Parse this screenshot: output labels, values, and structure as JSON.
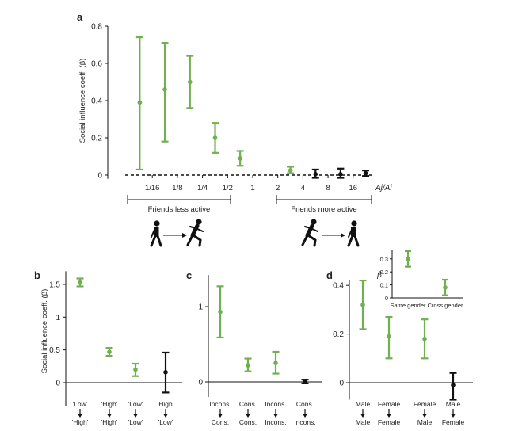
{
  "colors": {
    "green": "#6fb04f",
    "black": "#111111"
  },
  "panel_labels": {
    "a": "a",
    "b": "b",
    "c": "c",
    "d": "d"
  },
  "annotations": {
    "less_active": "Friends less active",
    "more_active": "Friends more active"
  },
  "icons": {
    "less_active_pair": "walker-to-runner-icon",
    "more_active_pair": "runner-to-walker-icon"
  },
  "chart_data": [
    {
      "id": "a",
      "type": "scatter",
      "subtype": "errorbar",
      "ylabel": "Social influence coeff. (β)",
      "xlabel": "Aj/Ai",
      "x_scale": "log2",
      "ylim": [
        -0.02,
        0.8
      ],
      "yticks": [
        0,
        0.2,
        0.4,
        0.6,
        0.8
      ],
      "ytick_labels": [
        "0",
        "0.2",
        "0.4",
        "0.6",
        "0.8"
      ],
      "xticks": [
        0.0625,
        0.125,
        0.25,
        0.5,
        1,
        2,
        4,
        8,
        16
      ],
      "xtick_labels": [
        "1/16",
        "1/8",
        "1/4",
        "1/2",
        "1",
        "2",
        "4",
        "8",
        "16"
      ],
      "points": [
        {
          "x": 0.0442,
          "y": 0.39,
          "lo": 0.03,
          "hi": 0.74,
          "color": "green"
        },
        {
          "x": 0.0884,
          "y": 0.46,
          "lo": 0.18,
          "hi": 0.71,
          "color": "green"
        },
        {
          "x": 0.177,
          "y": 0.5,
          "lo": 0.36,
          "hi": 0.64,
          "color": "green"
        },
        {
          "x": 0.354,
          "y": 0.2,
          "lo": 0.12,
          "hi": 0.28,
          "color": "green"
        },
        {
          "x": 0.707,
          "y": 0.09,
          "lo": 0.05,
          "hi": 0.13,
          "color": "green"
        },
        {
          "x": 2.83,
          "y": 0.025,
          "lo": 0.01,
          "hi": 0.045,
          "color": "green"
        },
        {
          "x": 5.66,
          "y": 0.005,
          "lo": -0.015,
          "hi": 0.03,
          "color": "black"
        },
        {
          "x": 11.3,
          "y": 0.005,
          "lo": -0.015,
          "hi": 0.035,
          "color": "black"
        },
        {
          "x": 22.6,
          "y": 0.01,
          "lo": -0.005,
          "hi": 0.025,
          "color": "black"
        }
      ]
    },
    {
      "id": "b",
      "type": "scatter",
      "subtype": "errorbar",
      "ylabel": "Social influence coeff. (β)",
      "ylim": [
        -0.35,
        1.7
      ],
      "yticks": [
        0,
        0.5,
        1,
        1.5
      ],
      "ytick_labels": [
        "0",
        "0.5",
        "1",
        "1.5"
      ],
      "categories": [
        {
          "top": "'Low'",
          "bottom": "'High'"
        },
        {
          "top": "'High'",
          "bottom": "'High'"
        },
        {
          "top": "'Low'",
          "bottom": "'Low'"
        },
        {
          "top": "'High'",
          "bottom": "'Low'"
        }
      ],
      "points": [
        {
          "y": 1.53,
          "lo": 1.47,
          "hi": 1.59,
          "color": "green"
        },
        {
          "y": 0.47,
          "lo": 0.41,
          "hi": 0.53,
          "color": "green"
        },
        {
          "y": 0.2,
          "lo": 0.1,
          "hi": 0.29,
          "color": "green"
        },
        {
          "y": 0.16,
          "lo": -0.15,
          "hi": 0.46,
          "color": "black"
        }
      ]
    },
    {
      "id": "c",
      "type": "scatter",
      "subtype": "errorbar",
      "ylim": [
        -0.2,
        1.42
      ],
      "yticks": [
        0,
        1
      ],
      "ytick_labels": [
        "0",
        "1"
      ],
      "categories": [
        {
          "top": "Incons.",
          "bottom": "Cons."
        },
        {
          "top": "Cons.",
          "bottom": "Cons."
        },
        {
          "top": "Incons.",
          "bottom": "Incons."
        },
        {
          "top": "Cons.",
          "bottom": "Incons."
        }
      ],
      "points": [
        {
          "y": 0.93,
          "lo": 0.59,
          "hi": 1.27,
          "color": "green"
        },
        {
          "y": 0.22,
          "lo": 0.14,
          "hi": 0.31,
          "color": "green"
        },
        {
          "y": 0.25,
          "lo": 0.11,
          "hi": 0.4,
          "color": "green"
        },
        {
          "y": 0.01,
          "lo": -0.02,
          "hi": 0.03,
          "color": "black"
        }
      ]
    },
    {
      "id": "d",
      "type": "scatter",
      "subtype": "errorbar",
      "ylim": [
        -0.07,
        0.42
      ],
      "yticks": [
        0,
        0.2,
        0.4
      ],
      "ytick_labels": [
        "0",
        "0.2",
        "0.4"
      ],
      "categories": [
        {
          "top": "Male",
          "bottom": "Male"
        },
        {
          "top": "Female",
          "bottom": "Female"
        },
        {
          "top": "Female",
          "bottom": "Male"
        },
        {
          "top": "Male",
          "bottom": "Female"
        }
      ],
      "points": [
        {
          "y": 0.32,
          "lo": 0.22,
          "hi": 0.42,
          "color": "green"
        },
        {
          "y": 0.19,
          "lo": 0.1,
          "hi": 0.27,
          "color": "green"
        },
        {
          "y": 0.18,
          "lo": 0.1,
          "hi": 0.26,
          "color": "green"
        },
        {
          "y": -0.01,
          "lo": -0.07,
          "hi": 0.04,
          "color": "black"
        }
      ]
    },
    {
      "id": "d_inset",
      "type": "scatter",
      "subtype": "errorbar",
      "ylabel": "β",
      "ylim": [
        0,
        0.37
      ],
      "yticks": [
        0,
        0.1,
        0.2,
        0.3
      ],
      "ytick_labels": [
        "0",
        "0.1",
        "0.2",
        "0.3"
      ],
      "categories": [
        "Same gender",
        "Cross gender"
      ],
      "points": [
        {
          "y": 0.3,
          "lo": 0.24,
          "hi": 0.36,
          "color": "green"
        },
        {
          "y": 0.08,
          "lo": 0.02,
          "hi": 0.14,
          "color": "green"
        }
      ]
    }
  ]
}
